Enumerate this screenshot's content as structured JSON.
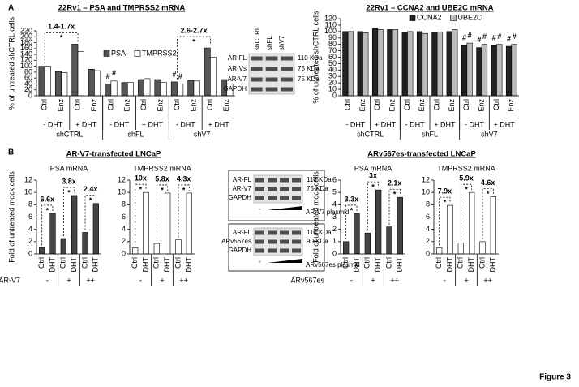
{
  "figure_label": "Figure 3",
  "panel_labels": [
    "A",
    "B"
  ],
  "section_titles": [
    "AR-V7-transfected LNCaP",
    "ARv567es-transfected LNCaP"
  ],
  "chart_data": [
    {
      "type": "bar",
      "title": "22Rv1 – PSA and TMPRSS2 mRNA",
      "y_label": "% of untreated shCTRL cells",
      "categories": [
        "Ctrl",
        "Enz",
        "Ctrl",
        "Enz",
        "Ctrl",
        "Enz",
        "Ctrl",
        "Enz",
        "Ctrl",
        "Enz",
        "Ctrl",
        "Enz"
      ],
      "groups": [
        "- DHT",
        "+ DHT",
        "- DHT",
        "+ DHT",
        "- DHT",
        "+ DHT"
      ],
      "supergroups": [
        "shCTRL",
        "shFL",
        "shV7"
      ],
      "series": [
        {
          "name": "PSA",
          "color": "#555555",
          "values": [
            100,
            82,
            175,
            90,
            40,
            45,
            55,
            55,
            47,
            52,
            162,
            55
          ]
        },
        {
          "name": "TMPRSS2",
          "color": "#ffffff",
          "values": [
            100,
            78,
            150,
            85,
            50,
            45,
            58,
            45,
            40,
            50,
            130,
            40
          ]
        }
      ],
      "ylim": [
        0,
        220
      ],
      "yticks": [
        0,
        20,
        40,
        60,
        80,
        100,
        120,
        140,
        160,
        180,
        200,
        220
      ],
      "legend": true,
      "brackets": [
        {
          "label": "1.4-1.7x",
          "mark": "*"
        },
        {
          "label": "2.6-2.7x",
          "mark": "*"
        }
      ],
      "hash_mark": "#"
    },
    {
      "type": "bar",
      "title": "22Rv1 – CCNA2 and UBE2C mRNA",
      "y_label": "% of untreated shCTRL cells",
      "categories": [
        "Ctrl",
        "Enz",
        "Ctrl",
        "Enz",
        "Ctrl",
        "Enz",
        "Ctrl",
        "Enz",
        "Ctrl",
        "Enz",
        "Ctrl",
        "Enz"
      ],
      "groups": [
        "- DHT",
        "+ DHT",
        "- DHT",
        "+ DHT",
        "- DHT",
        "+ DHT"
      ],
      "supergroups": [
        "shCTRL",
        "shFL",
        "shV7"
      ],
      "series": [
        {
          "name": "CCNA2",
          "color": "#222222",
          "values": [
            100,
            100,
            105,
            103,
            98,
            100,
            98,
            100,
            78,
            75,
            78,
            77
          ]
        },
        {
          "name": "UBE2C",
          "color": "#bbbbbb",
          "values": [
            100,
            98,
            103,
            103,
            100,
            97,
            99,
            103,
            82,
            80,
            80,
            80
          ]
        }
      ],
      "ylim": [
        0,
        120
      ],
      "yticks": [
        0,
        10,
        20,
        30,
        40,
        50,
        60,
        70,
        80,
        90,
        100,
        110,
        120
      ],
      "legend": true,
      "hash_mark": "#"
    },
    {
      "type": "bar",
      "title": "PSA mRNA",
      "y_label": "Fold of untreated mock cells",
      "categories": [
        "Ctrl",
        "DHT",
        "Ctrl",
        "DHT",
        "Ctrl",
        "DHT"
      ],
      "groups": [
        "-",
        "+",
        "++"
      ],
      "group_axis_label": "AR-V7",
      "series": [
        {
          "name": "PSA",
          "color": "#444444",
          "values": [
            1,
            6.6,
            2.5,
            9.5,
            3.5,
            8.2
          ]
        }
      ],
      "ylim": [
        0,
        12
      ],
      "yticks": [
        0,
        2,
        4,
        6,
        8,
        10,
        12
      ],
      "pair_labels": [
        "6.6x",
        "3.8x",
        "2.4x"
      ],
      "star_mark": "*"
    },
    {
      "type": "bar",
      "title": "TMPRSS2 mRNA",
      "categories": [
        "Ctrl",
        "DHT",
        "Ctrl",
        "DHT",
        "Ctrl",
        "DHT"
      ],
      "groups": [
        "-",
        "+",
        "++"
      ],
      "series": [
        {
          "name": "TMPRSS2",
          "color": "#ffffff",
          "values": [
            1,
            10,
            1.7,
            9.9,
            2.3,
            9.9
          ]
        }
      ],
      "ylim": [
        0,
        12
      ],
      "yticks": [
        0,
        2,
        4,
        6,
        8,
        10,
        12
      ],
      "pair_labels": [
        "10x",
        "5.8x",
        "4.3x"
      ],
      "star_mark": "*"
    },
    {
      "type": "bar",
      "title": "PSA mRNA",
      "y_label": "Fold of untreated mock cells",
      "categories": [
        "Ctrl",
        "DHT",
        "Ctrl",
        "DHT",
        "Ctrl",
        "DHT"
      ],
      "groups": [
        "-",
        "+",
        "++"
      ],
      "group_axis_label": "ARv567es",
      "series": [
        {
          "name": "PSA",
          "color": "#444444",
          "values": [
            1,
            3.3,
            1.7,
            5.2,
            2.2,
            4.6
          ]
        }
      ],
      "ylim": [
        0,
        6
      ],
      "yticks": [
        0,
        1,
        2,
        3,
        4,
        5,
        6
      ],
      "pair_labels": [
        "3.3x",
        "3x",
        "2.1x"
      ],
      "star_mark": "*"
    },
    {
      "type": "bar",
      "title": "TMPRSS2 mRNA",
      "categories": [
        "Ctrl",
        "DHT",
        "Ctrl",
        "DHT",
        "Ctrl",
        "DHT"
      ],
      "groups": [
        "-",
        "+",
        "++"
      ],
      "series": [
        {
          "name": "TMPRSS2",
          "color": "#ffffff",
          "values": [
            1,
            7.9,
            1.8,
            10,
            2,
            9.3
          ]
        }
      ],
      "ylim": [
        0,
        12
      ],
      "yticks": [
        0,
        2,
        4,
        6,
        8,
        10,
        12
      ],
      "pair_labels": [
        "7.9x",
        "5.9x",
        "4.6x"
      ],
      "star_mark": "*"
    }
  ],
  "blots": [
    {
      "lanes": [
        "shCTRL",
        "shFL",
        "shV7"
      ],
      "rows": [
        "AR-FL",
        "AR-Vs",
        "AR-V7",
        "GAPDH"
      ],
      "sizes": [
        "110 KDa",
        "75 KDa",
        "75 KDa"
      ]
    },
    {
      "rows": [
        "AR-FL",
        "AR-V7",
        "GAPDH"
      ],
      "sizes": [
        "110 KDa",
        "75 KDa"
      ],
      "minus": "-",
      "plasmid": "AR-V7 plasmid"
    },
    {
      "rows": [
        "AR-FL",
        "ARv567es",
        "GAPDH"
      ],
      "sizes": [
        "110 KDa",
        "90 KDa"
      ],
      "minus": "-",
      "plasmid": "ARv567es plasmid"
    }
  ]
}
